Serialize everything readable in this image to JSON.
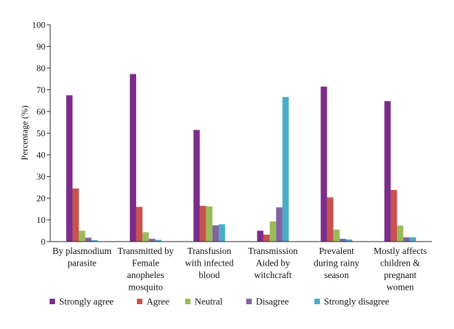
{
  "chart_data": {
    "type": "bar",
    "title": "",
    "xlabel": "",
    "ylabel": "Percentage (%)",
    "ylim": [
      0,
      100
    ],
    "yticks": [
      0,
      10,
      20,
      30,
      40,
      50,
      60,
      70,
      80,
      90,
      100
    ],
    "grid": false,
    "legend_position": "bottom",
    "categories": [
      [
        "By plasmodium",
        "parasite"
      ],
      [
        "Transmitted by",
        "Female",
        "anopheles",
        "mosquito"
      ],
      [
        "Transfusion",
        "with infected",
        "blood"
      ],
      [
        "Transmission",
        "Aided by",
        "witchcraft"
      ],
      [
        "Prevalent",
        "during rainy",
        "season"
      ],
      [
        "Mostly affects",
        "children &",
        "pregnant",
        "women"
      ]
    ],
    "series": [
      {
        "name": "Strongly agree",
        "color": "#7b2d8b",
        "values": [
          67.5,
          77.3,
          51.5,
          5.0,
          71.5,
          64.8
        ]
      },
      {
        "name": "Agree",
        "color": "#c8524e",
        "values": [
          24.5,
          16.0,
          16.5,
          3.2,
          20.4,
          23.8
        ]
      },
      {
        "name": "Neutral",
        "color": "#9bbb59",
        "values": [
          5.0,
          4.3,
          16.2,
          9.3,
          5.5,
          7.4
        ]
      },
      {
        "name": "Disagree",
        "color": "#8064a2",
        "values": [
          1.8,
          1.3,
          7.5,
          15.8,
          1.3,
          2.0
        ]
      },
      {
        "name": "Strongly disagree",
        "color": "#4bacc6",
        "values": [
          0.7,
          0.8,
          8.0,
          66.7,
          1.0,
          2.0
        ]
      }
    ]
  }
}
